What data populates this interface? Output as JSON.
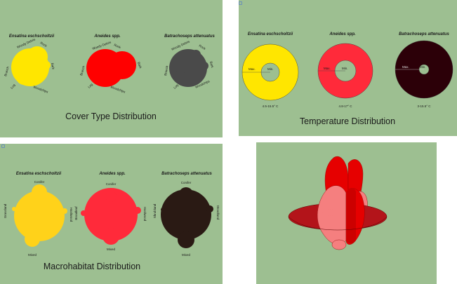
{
  "species": [
    "Ensatina eschscholtzii",
    "Aneides spp.",
    "Batrachoseps attenuatus"
  ],
  "colors": {
    "background": "#9dbf91",
    "ensatina": "#ffe600",
    "ensatina_macro": "#ffd21a",
    "aneides": "#ff0000",
    "aneides_temp": "#ff2a3a",
    "batrachoseps": "#4a4a4a",
    "batrachoseps_temp": "#2c0008",
    "batrachoseps_macro": "#2a1a14",
    "composite_light": "#f57f7f",
    "composite_red": "#e60000",
    "composite_ring": "#b3141a"
  },
  "cover": {
    "title": "Cover Type Distribution",
    "labels": {
      "woody_debris": "Woody Debris",
      "rock": "Rock",
      "bark": "Bark",
      "branch": "Branch",
      "log": "Log",
      "stump": "Stump",
      "woodchips": "Woodchips"
    }
  },
  "temperature": {
    "title": "Temperature Distribution",
    "max_label": "Max.",
    "min_label": "Min.",
    "ranges": [
      "4.5-15.5° C",
      "4.8-17° C",
      "3-15.5° C"
    ]
  },
  "macro": {
    "title": "Macrohabitat Distribution",
    "labels": {
      "conifer": "Conifer",
      "mixed": "Mixed",
      "grassland": "Grassland",
      "broadleaf": "Broadleaf",
      "hardwood": "Hardwood",
      "shrubland": "Shrubland",
      "woodland": "Woodland"
    }
  }
}
